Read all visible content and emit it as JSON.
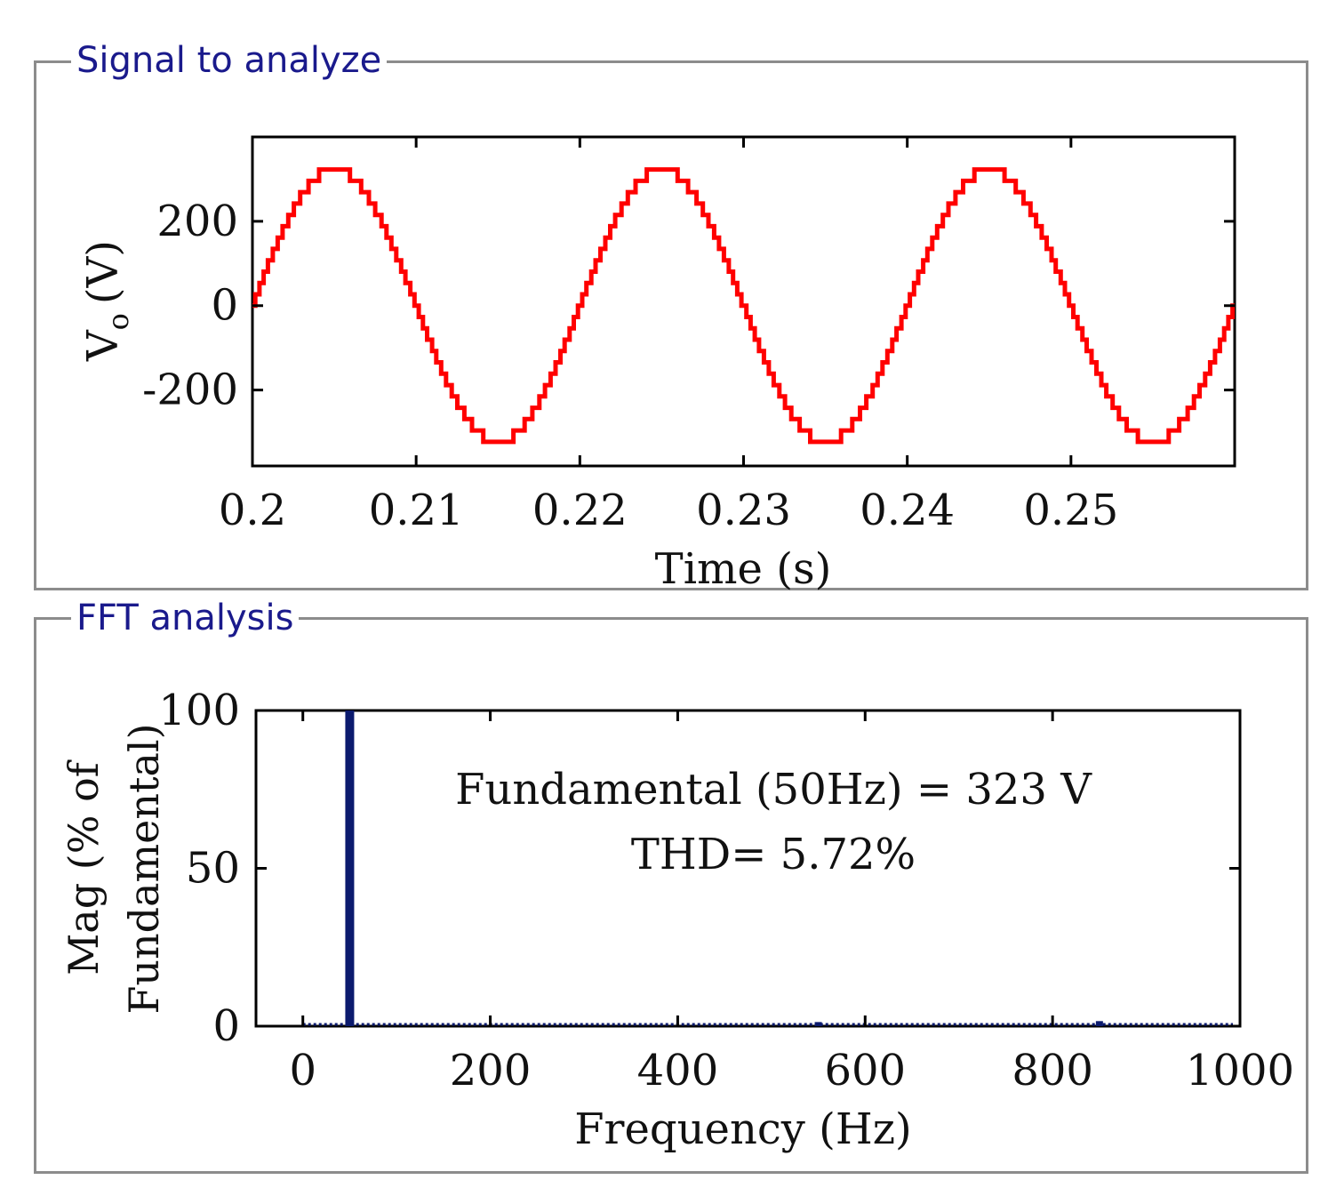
{
  "panels": {
    "signal": {
      "title": "Signal to analyze"
    },
    "fft": {
      "title": "FFT analysis"
    }
  },
  "chart_data": [
    {
      "type": "line",
      "name": "signal",
      "color": "#ff0000",
      "xlabel": "Time (s)",
      "ylabel": "V",
      "ylabel_subscript": "o",
      "ylabel_unit": "(V)",
      "xlim": [
        0.2,
        0.26
      ],
      "ylim": [
        -380,
        400
      ],
      "xticks": [
        0.2,
        0.21,
        0.22,
        0.23,
        0.24,
        0.25
      ],
      "xtick_labels": [
        "0.2",
        "0.21",
        "0.22",
        "0.23",
        "0.24",
        "0.25"
      ],
      "yticks": [
        -200,
        0,
        200
      ],
      "ytick_labels": [
        "-200",
        "0",
        "200"
      ],
      "signal_params": {
        "frequency_hz": 50,
        "amplitude_v": 323,
        "levels": 12,
        "step_v": 26.9,
        "t_start": 0.2,
        "t_end": 0.26
      }
    },
    {
      "type": "bar",
      "name": "fft",
      "color": "#0b1a6e",
      "xlabel": "Frequency (Hz)",
      "ylabel_line1": "Mag (% of",
      "ylabel_line2": "Fundamental)",
      "xlim": [
        -50,
        1000
      ],
      "ylim": [
        0,
        100
      ],
      "xticks": [
        0,
        200,
        400,
        600,
        800,
        1000
      ],
      "xtick_labels": [
        "0",
        "200",
        "400",
        "600",
        "800",
        "1000"
      ],
      "yticks": [
        0,
        50,
        100
      ],
      "ytick_labels": [
        "0",
        "50",
        "100"
      ],
      "bars": [
        {
          "freq": 50,
          "mag": 100
        },
        {
          "freq": 550,
          "mag": 1.3
        },
        {
          "freq": 850,
          "mag": 1.6
        }
      ],
      "annotations": [
        "Fundamental (50Hz) = 323 V",
        "THD= 5.72%"
      ]
    }
  ]
}
